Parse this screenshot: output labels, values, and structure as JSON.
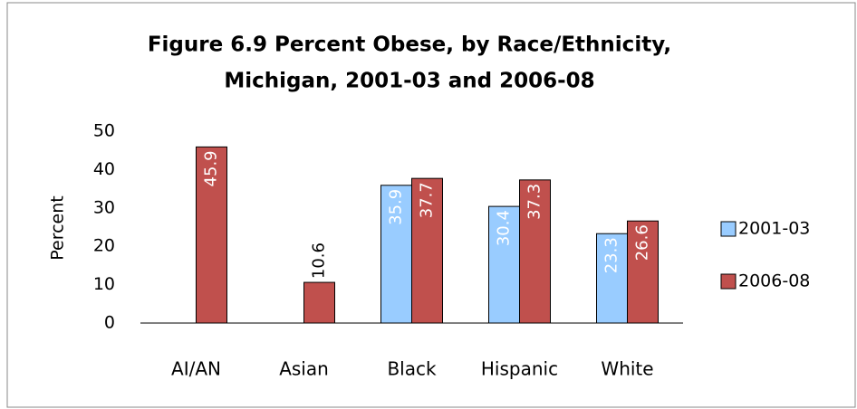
{
  "chart_data": {
    "type": "bar",
    "title": [
      "Figure 6.9  Percent  Obese, by Race/Ethnicity,",
      "Michigan, 2001-03 and 2006-08"
    ],
    "y_label": "Percent",
    "categories": [
      "AI/AN",
      "Asian",
      "Black",
      "Hispanic",
      "White"
    ],
    "series": [
      {
        "name": "2001-03",
        "color": "#99ccff",
        "values": [
          null,
          null,
          35.9,
          30.4,
          23.3
        ]
      },
      {
        "name": "2006-08",
        "color": "#c0504d",
        "values": [
          45.9,
          10.6,
          37.7,
          37.3,
          26.6
        ]
      }
    ],
    "ylim": [
      0,
      50
    ],
    "yticks": [
      0,
      10,
      20,
      30,
      40,
      50
    ],
    "grid": false,
    "legend": "right"
  }
}
